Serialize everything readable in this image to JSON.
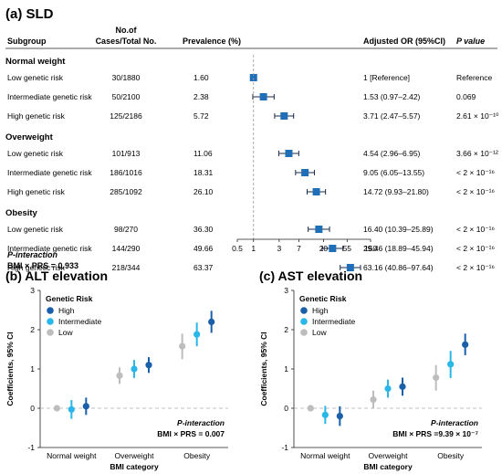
{
  "panel_a": {
    "title": "(a) SLD",
    "headers": {
      "subgroup": "Subgroup",
      "cases_line1": "No.of",
      "cases_line2": "Cases/Total No.",
      "prevalence": "Prevalence (%)",
      "or": "Adjusted OR (95%CI)",
      "pvalue": "P value"
    },
    "groups": [
      {
        "name": "Normal weight",
        "rows": [
          {
            "label": "Low genetic risk",
            "cases": "30/1880",
            "prev": "1.60",
            "or_text": "1 [Reference]",
            "p_text": "Reference",
            "or": 1,
            "lo": 1,
            "hi": 1
          },
          {
            "label": "Intermediate genetic risk",
            "cases": "50/2100",
            "prev": "2.38",
            "or_text": "1.53 (0.97–2.42)",
            "p_text": "0.069",
            "or": 1.53,
            "lo": 0.97,
            "hi": 2.42
          },
          {
            "label": "High genetic risk",
            "cases": "125/2186",
            "prev": "5.72",
            "or_text": "3.71 (2.47–5.57)",
            "p_text": "2.61 × 10⁻¹⁰",
            "or": 3.71,
            "lo": 2.47,
            "hi": 5.57
          }
        ]
      },
      {
        "name": "Overweight",
        "rows": [
          {
            "label": "Low genetic risk",
            "cases": "101/913",
            "prev": "11.06",
            "or_text": "4.54 (2.96–6.95)",
            "p_text": "3.66 × 10⁻¹²",
            "or": 4.54,
            "lo": 2.96,
            "hi": 6.95
          },
          {
            "label": "Intermediate genetic risk",
            "cases": "186/1016",
            "prev": "18.31",
            "or_text": "9.05 (6.05–13.55)",
            "p_text": "< 2 × 10⁻¹⁶",
            "or": 9.05,
            "lo": 6.05,
            "hi": 13.55
          },
          {
            "label": "High genetic risk",
            "cases": "285/1092",
            "prev": "26.10",
            "or_text": "14.72 (9.93–21.80)",
            "p_text": "< 2 × 10⁻¹⁶",
            "or": 14.72,
            "lo": 9.93,
            "hi": 21.8
          }
        ]
      },
      {
        "name": "Obesity",
        "rows": [
          {
            "label": "Low genetic risk",
            "cases": "98/270",
            "prev": "36.30",
            "or_text": "16.40 (10.39–25.89)",
            "p_text": "< 2 × 10⁻¹⁶",
            "or": 16.4,
            "lo": 10.39,
            "hi": 25.89
          },
          {
            "label": "Intermediate genetic risk",
            "cases": "144/290",
            "prev": "49.66",
            "or_text": "29.46 (18.89–45.94)",
            "p_text": "< 2 × 10⁻¹⁶",
            "or": 29.46,
            "lo": 18.89,
            "hi": 45.94
          },
          {
            "label": "High genetic risk",
            "cases": "218/344",
            "prev": "63.37",
            "or_text": "63.16 (40.86–97.64)",
            "p_text": "< 2 × 10⁻¹⁶",
            "or": 63.16,
            "lo": 40.86,
            "hi": 97.64
          }
        ]
      }
    ],
    "x_ticks": [
      "0.5",
      "1",
      "3",
      "7",
      "20",
      "55",
      "150"
    ],
    "interaction_line1": "P-interaction",
    "interaction_line2": "BMI × PRS = 0.933"
  },
  "chart_data": [
    {
      "type": "scatter",
      "panel": "(a) SLD",
      "title": "(a) SLD",
      "x_scale": "log",
      "xlim": [
        0.5,
        150
      ],
      "x_ticks": [
        0.5,
        1,
        3,
        7,
        20,
        55,
        150
      ],
      "reference_line": 1,
      "series": [
        {
          "name": "Normal weight",
          "categories": [
            "Low genetic risk",
            "Intermediate genetic risk",
            "High genetic risk"
          ],
          "or": [
            1,
            1.53,
            3.71
          ],
          "lower": [
            1,
            0.97,
            2.47
          ],
          "upper": [
            1,
            2.42,
            5.57
          ]
        },
        {
          "name": "Overweight",
          "categories": [
            "Low genetic risk",
            "Intermediate genetic risk",
            "High genetic risk"
          ],
          "or": [
            4.54,
            9.05,
            14.72
          ],
          "lower": [
            2.96,
            6.05,
            9.93
          ],
          "upper": [
            6.95,
            13.55,
            21.8
          ]
        },
        {
          "name": "Obesity",
          "categories": [
            "Low genetic risk",
            "Intermediate genetic risk",
            "High genetic risk"
          ],
          "or": [
            16.4,
            29.46,
            63.16
          ],
          "lower": [
            10.39,
            18.89,
            40.86
          ],
          "upper": [
            25.89,
            45.94,
            97.64
          ]
        }
      ]
    },
    {
      "type": "scatter",
      "panel": "(b)",
      "title": "(b) ALT elevation",
      "xlabel": "BMI category",
      "ylabel": "Coefficients, 95% CI",
      "ylim": [
        -1,
        3
      ],
      "y_ticks": [
        -1,
        0,
        1,
        2,
        3
      ],
      "reference_line": 0,
      "categories": [
        "Normal weight",
        "Overweight",
        "Obesity"
      ],
      "legend_title": "Genetic Risk",
      "legend_position": "top-left",
      "series": [
        {
          "name": "Low",
          "color": "#bdbdbd",
          "values": [
            0.0,
            0.83,
            1.58
          ],
          "lower": [
            -0.05,
            0.62,
            1.25
          ],
          "upper": [
            0.05,
            1.04,
            1.9
          ]
        },
        {
          "name": "Intermediate",
          "color": "#29b6e8",
          "values": [
            -0.03,
            1.0,
            1.88
          ],
          "lower": [
            -0.27,
            0.77,
            1.58
          ],
          "upper": [
            0.21,
            1.23,
            2.18
          ]
        },
        {
          "name": "High",
          "color": "#1a5faa",
          "values": [
            0.05,
            1.1,
            2.2
          ],
          "lower": [
            -0.17,
            0.9,
            1.92
          ],
          "upper": [
            0.27,
            1.3,
            2.48
          ]
        }
      ],
      "annotation_line1": "P-interaction",
      "annotation_line2": "BMI × PRS = 0.007"
    },
    {
      "type": "scatter",
      "panel": "(c)",
      "title": "(c) AST elevation",
      "xlabel": "BMI category",
      "ylabel": "Coefficients, 95% CI",
      "ylim": [
        -1,
        3
      ],
      "y_ticks": [
        -1,
        0,
        1,
        2,
        3
      ],
      "reference_line": 0,
      "categories": [
        "Normal weight",
        "Overweight",
        "Obesity"
      ],
      "legend_title": "Genetic Risk",
      "legend_position": "top-left",
      "series": [
        {
          "name": "Low",
          "color": "#bdbdbd",
          "values": [
            0.0,
            0.22,
            0.78
          ],
          "lower": [
            -0.05,
            0.0,
            0.45
          ],
          "upper": [
            0.05,
            0.45,
            1.1
          ]
        },
        {
          "name": "Intermediate",
          "color": "#29b6e8",
          "values": [
            -0.17,
            0.5,
            1.12
          ],
          "lower": [
            -0.4,
            0.27,
            0.77
          ],
          "upper": [
            0.06,
            0.73,
            1.46
          ]
        },
        {
          "name": "High",
          "color": "#1a5faa",
          "values": [
            -0.2,
            0.55,
            1.62
          ],
          "lower": [
            -0.45,
            0.32,
            1.35
          ],
          "upper": [
            0.05,
            0.78,
            1.9
          ]
        }
      ],
      "annotation_line1": "P-interaction",
      "annotation_line2": "BMI × PRS =9.39 × 10⁻⁷"
    }
  ],
  "colors": {
    "forest_marker": "#1f6fb8",
    "low": "#bdbdbd",
    "intermediate": "#29b6e8",
    "high": "#1a5faa"
  }
}
